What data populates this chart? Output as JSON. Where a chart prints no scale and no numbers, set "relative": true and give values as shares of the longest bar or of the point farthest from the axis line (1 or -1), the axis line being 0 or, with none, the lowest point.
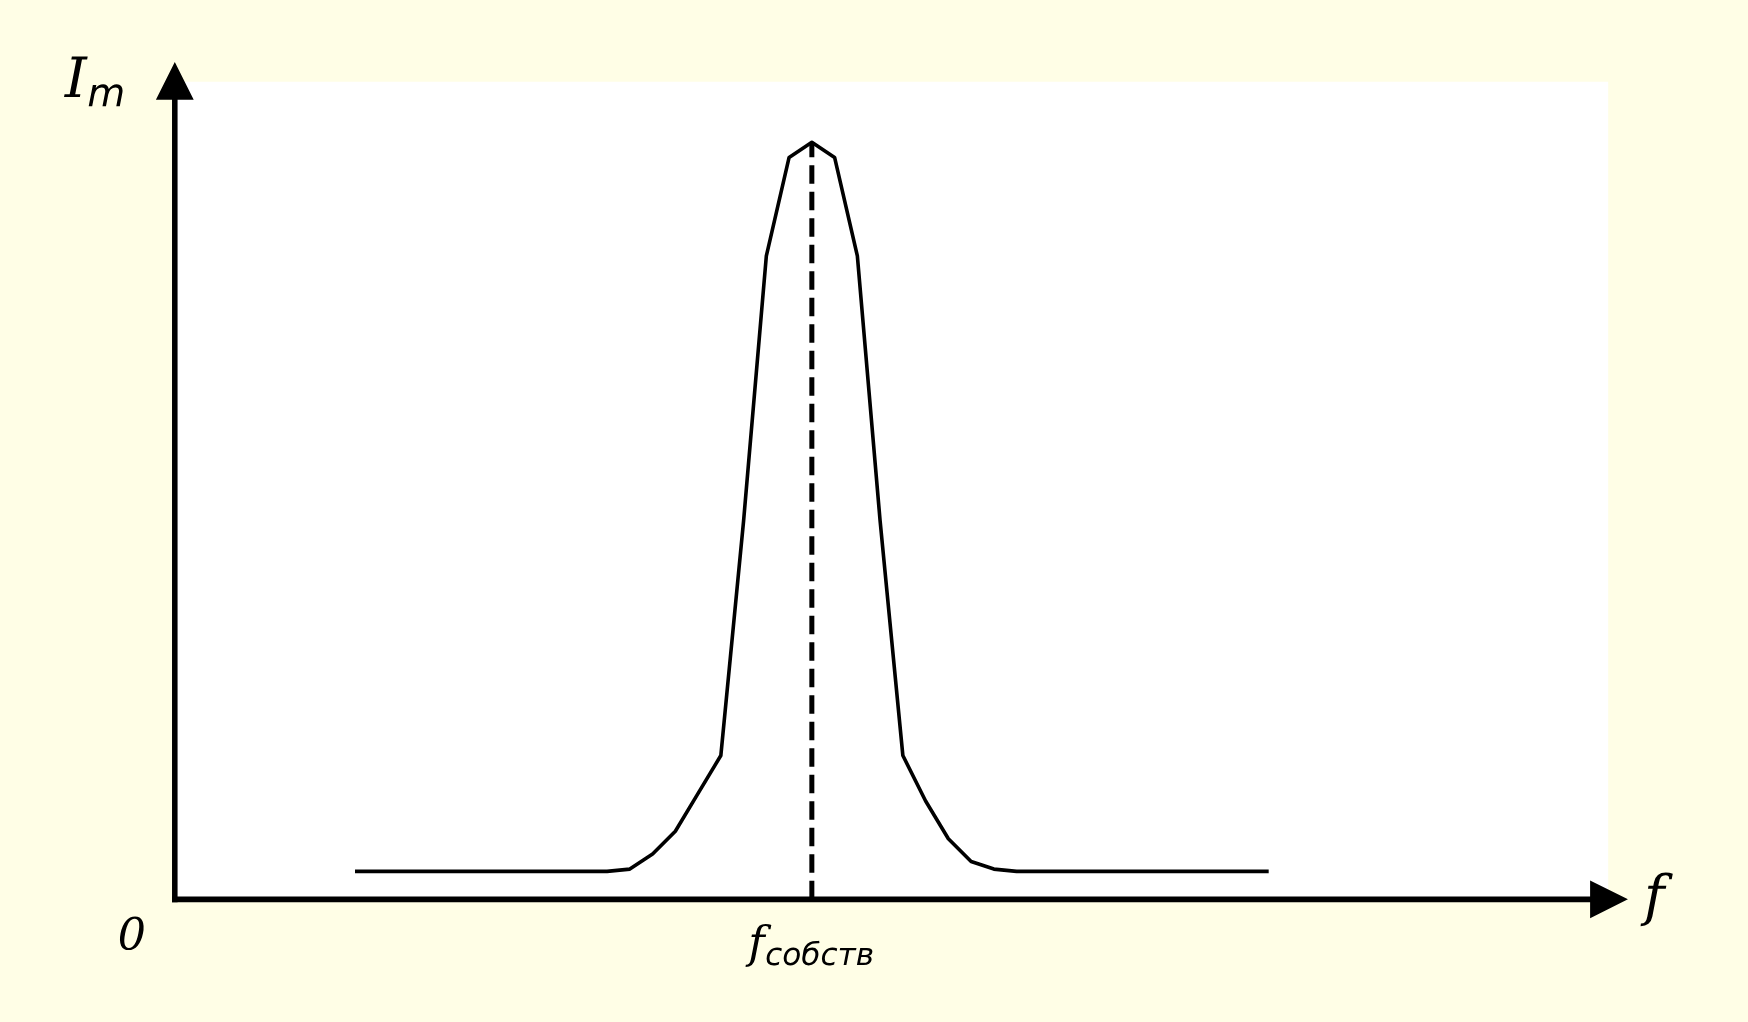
{
  "chart_data": {
    "type": "line",
    "relative": true,
    "ylabel": "I$_{m}$",
    "annotations": [
      "0",
      "f",
      "f$_{собств}$"
    ],
    "categories": [
      null,
      null,
      null,
      null,
      null,
      null,
      null,
      null,
      null,
      null,
      null,
      null,
      null,
      null,
      null,
      null,
      null,
      null,
      null,
      null,
      null,
      null,
      null,
      null,
      null,
      null,
      null,
      null,
      null,
      null,
      null,
      null,
      null,
      null,
      null,
      null,
      null,
      null,
      null,
      null,
      null
    ],
    "values": [
      0.037,
      0.037,
      0.037,
      0.037,
      0.037,
      0.037,
      0.037,
      0.037,
      0.037,
      0.037,
      0.037,
      0.037,
      0.04,
      0.06,
      0.09,
      0.14,
      0.19,
      0.5,
      0.85,
      0.98,
      1.0,
      0.98,
      0.85,
      0.5,
      0.19,
      0.13,
      0.08,
      0.05,
      0.04,
      0.037,
      0.037,
      0.037,
      0.037,
      0.037,
      0.037,
      0.037,
      0.037,
      0.037,
      0.037,
      0.037,
      0.037
    ],
    "color": "#000000",
    "line_style": "solid"
  }
}
